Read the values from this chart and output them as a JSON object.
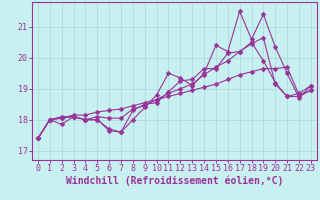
{
  "xlabel": "Windchill (Refroidissement éolien,°C)",
  "bg_color": "#c8f0f0",
  "line_color": "#993399",
  "grid_color": "#aadddd",
  "xlim": [
    -0.5,
    23.5
  ],
  "ylim": [
    16.7,
    21.8
  ],
  "yticks": [
    17,
    18,
    19,
    20,
    21
  ],
  "xticks": [
    0,
    1,
    2,
    3,
    4,
    5,
    6,
    7,
    8,
    9,
    10,
    11,
    12,
    13,
    14,
    15,
    16,
    17,
    18,
    19,
    20,
    21,
    22,
    23
  ],
  "series": [
    [
      17.4,
      18.0,
      17.85,
      18.1,
      18.0,
      18.0,
      17.65,
      17.6,
      18.0,
      18.4,
      18.8,
      19.5,
      19.35,
      19.1,
      19.5,
      20.4,
      20.2,
      21.5,
      20.6,
      21.4,
      20.35,
      19.5,
      18.7,
      19.1
    ],
    [
      17.4,
      18.0,
      18.1,
      18.1,
      18.0,
      18.0,
      17.7,
      17.6,
      18.3,
      18.5,
      18.55,
      18.9,
      19.25,
      19.3,
      19.65,
      19.65,
      20.15,
      20.2,
      20.5,
      19.9,
      19.2,
      18.75,
      18.85,
      19.1
    ],
    [
      17.4,
      18.0,
      18.05,
      18.1,
      18.0,
      18.1,
      18.05,
      18.05,
      18.35,
      18.45,
      18.65,
      18.85,
      19.0,
      19.15,
      19.45,
      19.7,
      19.9,
      20.2,
      20.45,
      20.65,
      19.15,
      18.75,
      18.75,
      18.95
    ],
    [
      17.4,
      18.0,
      18.05,
      18.15,
      18.15,
      18.25,
      18.3,
      18.35,
      18.45,
      18.55,
      18.65,
      18.75,
      18.85,
      18.95,
      19.05,
      19.15,
      19.3,
      19.45,
      19.55,
      19.65,
      19.65,
      19.7,
      18.8,
      18.95
    ]
  ],
  "marker": "D",
  "markersize": 2.5,
  "linewidth": 0.8,
  "tick_fontsize": 6.0,
  "xlabel_fontsize": 7.0,
  "tick_color": "#993399",
  "label_color": "#993399",
  "spine_color": "#993399"
}
